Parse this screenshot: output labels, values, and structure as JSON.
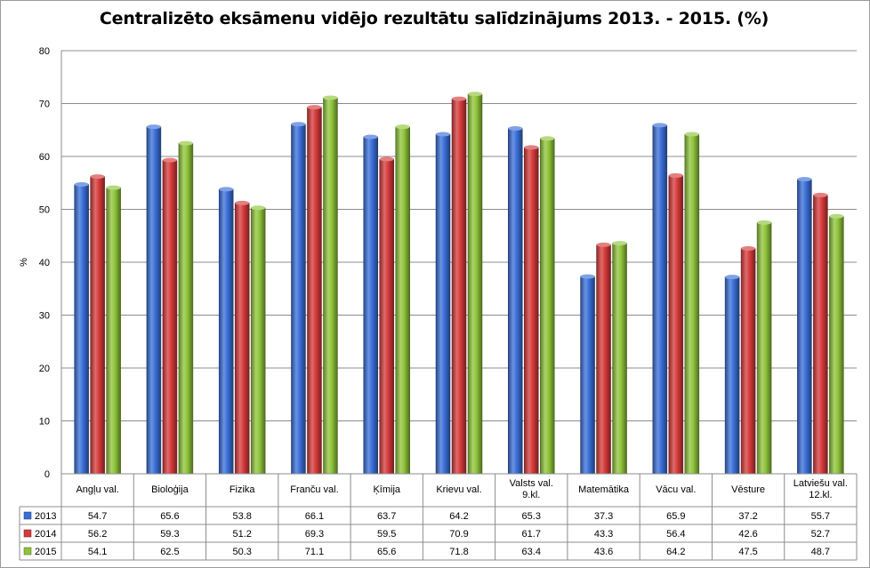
{
  "chart_data": {
    "type": "bar",
    "title": "Centralizēto eksāmenu vidējo rezultātu salīdzinājums 2013. - 2015. (%)",
    "xlabel": "",
    "ylabel": "%",
    "ylim": [
      0,
      80
    ],
    "yticks": [
      "0",
      "10",
      "20",
      "30",
      "40",
      "50",
      "60",
      "70",
      "80"
    ],
    "grid": true,
    "legend": "data-table-left",
    "categories": [
      [
        "Angļu val."
      ],
      [
        "Bioloģija"
      ],
      [
        "Fizika"
      ],
      [
        "Franču val."
      ],
      [
        "Ķīmija"
      ],
      [
        "Krievu val."
      ],
      [
        "Valsts val.",
        "9.kl."
      ],
      [
        "Matemātika"
      ],
      [
        "Vācu val."
      ],
      [
        "Vēsture"
      ],
      [
        "Latviešu val.",
        "12.kl."
      ]
    ],
    "series": [
      {
        "name": "2013",
        "color": "#3a6fd8",
        "values": [
          54.7,
          65.6,
          53.8,
          66.1,
          63.7,
          64.2,
          65.3,
          37.3,
          65.9,
          37.2,
          55.7
        ],
        "labels": [
          "54.7",
          "65.6",
          "53.8",
          "66.1",
          "63.7",
          "64.2",
          "65.3",
          "37.3",
          "65.9",
          "37.2",
          "55.7"
        ]
      },
      {
        "name": "2014",
        "color": "#d63a3a",
        "values": [
          56.2,
          59.3,
          51.2,
          69.3,
          59.5,
          70.9,
          61.7,
          43.3,
          56.4,
          42.6,
          52.7
        ],
        "labels": [
          "56.2",
          "59.3",
          "51.2",
          "69.3",
          "59.5",
          "70.9",
          "61.7",
          "43.3",
          "56.4",
          "42.6",
          "52.7"
        ]
      },
      {
        "name": "2015",
        "color": "#8fc43a",
        "values": [
          54.1,
          62.5,
          50.3,
          71.1,
          65.6,
          71.8,
          63.4,
          43.6,
          64.2,
          47.5,
          48.7
        ],
        "labels": [
          "54.1",
          "62.5",
          "50.3",
          "71.1",
          "65.6",
          "71.8",
          "63.4",
          "43.6",
          "64.2",
          "47.5",
          "48.7"
        ]
      }
    ]
  }
}
